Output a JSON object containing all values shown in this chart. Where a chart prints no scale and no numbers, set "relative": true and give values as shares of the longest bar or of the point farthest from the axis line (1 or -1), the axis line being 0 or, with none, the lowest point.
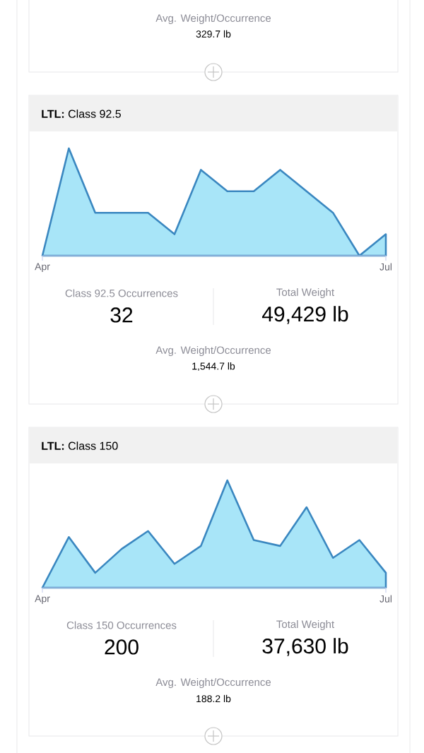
{
  "chart_data": [
    {
      "type": "other",
      "annotations": [
        "Avg. Weight/Occurrence",
        "329.7 lb"
      ]
    },
    {
      "type": "area",
      "title": "**LTL:** Class 92.5",
      "relative": true,
      "color": "#3a87c0",
      "categories": [
        "Apr",
        null,
        null,
        null,
        null,
        null,
        null,
        null,
        null,
        null,
        null,
        null,
        null,
        "Jul"
      ],
      "values": [
        0,
        1,
        0.4,
        0.4,
        0.4,
        0.2,
        0.8,
        0.6,
        0.6,
        0.8,
        0.6,
        0.4,
        0,
        0.2
      ],
      "annotations": [
        "Class 92.5 Occurrences",
        "32",
        "Total Weight",
        "49,429 lb",
        "Avg. Weight/Occurrence",
        "1,544.7 lb"
      ]
    },
    {
      "type": "area",
      "title": "**LTL:** Class 150",
      "relative": true,
      "color": "#3a87c0",
      "categories": [
        "Apr",
        null,
        null,
        null,
        null,
        null,
        null,
        null,
        null,
        null,
        null,
        null,
        null,
        "Jul"
      ],
      "values": [
        0,
        0.472,
        0.139,
        0.361,
        0.528,
        0.222,
        0.389,
        1,
        0.444,
        0.389,
        0.75,
        0.278,
        0.444,
        0.139
      ],
      "annotations": [
        "Class 150 Occurrences",
        "200",
        "Total Weight",
        "37,630 lb",
        "Avg. Weight/Occurrence",
        "188.2 lb"
      ]
    }
  ]
}
